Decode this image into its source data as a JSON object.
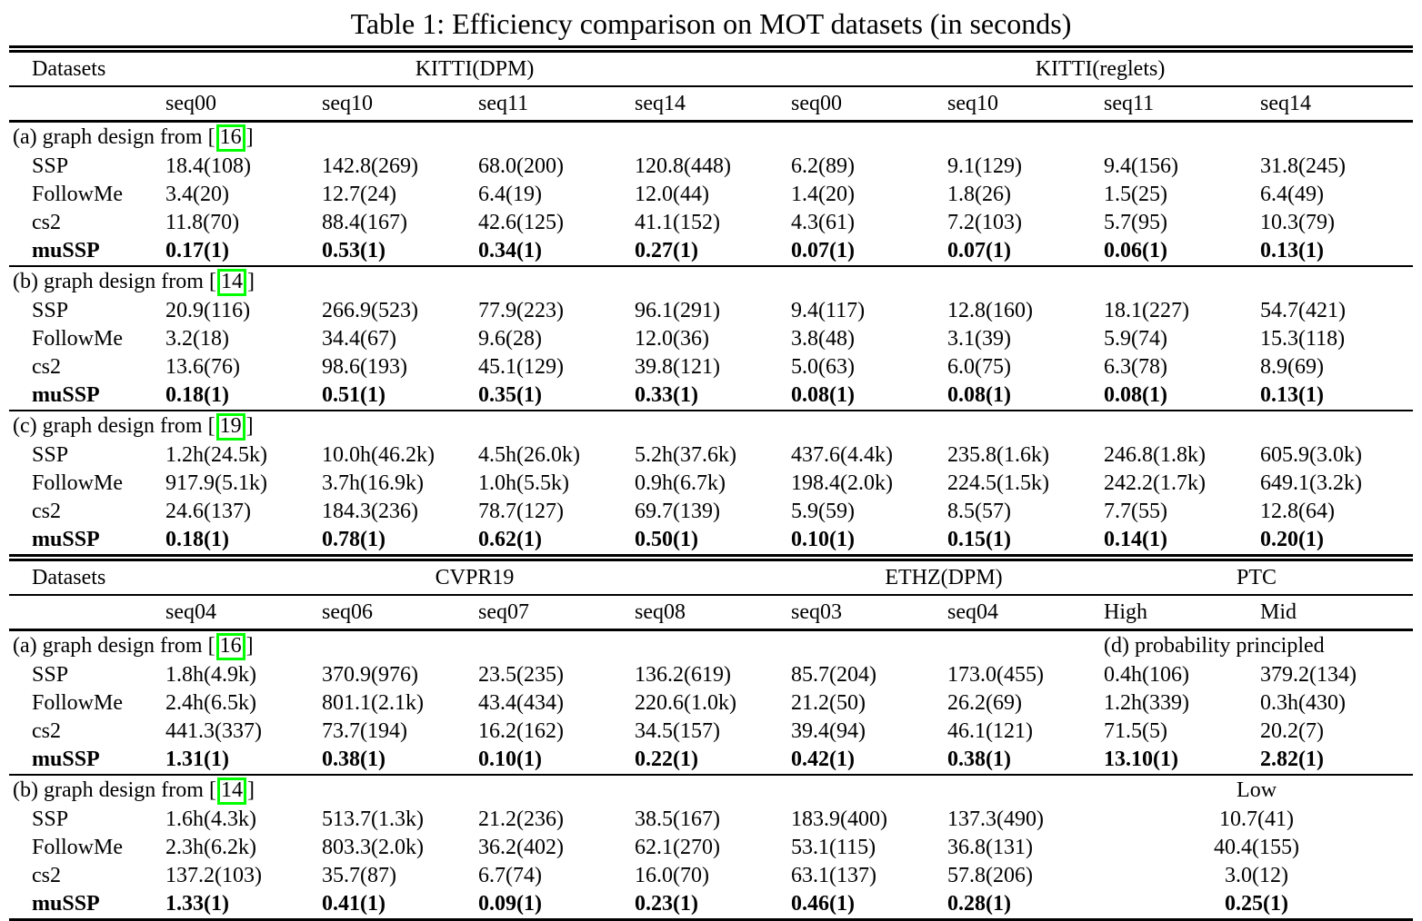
{
  "title": "Table 1: Efficiency comparison on MOT datasets (in seconds)",
  "accent_green": "#00ff00",
  "table1": {
    "datasets_label": "Datasets",
    "groups": [
      {
        "label": "KITTI(DPM)",
        "span": 4
      },
      {
        "label": "KITTI(reglets)",
        "span": 4
      }
    ],
    "seq_headers": [
      "seq00",
      "seq10",
      "seq11",
      "seq14",
      "seq00",
      "seq10",
      "seq11",
      "seq14"
    ],
    "sections": [
      {
        "label_prefix": "(a) graph design from [",
        "cite": "16",
        "label_suffix": "]",
        "rows": [
          {
            "name": "SSP",
            "bold": false,
            "values": [
              "18.4(108)",
              "142.8(269)",
              "68.0(200)",
              "120.8(448)",
              "6.2(89)",
              "9.1(129)",
              "9.4(156)",
              "31.8(245)"
            ]
          },
          {
            "name": "FollowMe",
            "bold": false,
            "values": [
              "3.4(20)",
              "12.7(24)",
              "6.4(19)",
              "12.0(44)",
              "1.4(20)",
              "1.8(26)",
              "1.5(25)",
              "6.4(49)"
            ]
          },
          {
            "name": "cs2",
            "bold": false,
            "values": [
              "11.8(70)",
              "88.4(167)",
              "42.6(125)",
              "41.1(152)",
              "4.3(61)",
              "7.2(103)",
              "5.7(95)",
              "10.3(79)"
            ]
          },
          {
            "name": "muSSP",
            "bold": true,
            "values": [
              "0.17(1)",
              "0.53(1)",
              "0.34(1)",
              "0.27(1)",
              "0.07(1)",
              "0.07(1)",
              "0.06(1)",
              "0.13(1)"
            ]
          }
        ]
      },
      {
        "label_prefix": "(b) graph design from [",
        "cite": "14",
        "label_suffix": "]",
        "rows": [
          {
            "name": "SSP",
            "bold": false,
            "values": [
              "20.9(116)",
              "266.9(523)",
              "77.9(223)",
              "96.1(291)",
              "9.4(117)",
              "12.8(160)",
              "18.1(227)",
              "54.7(421)"
            ]
          },
          {
            "name": "FollowMe",
            "bold": false,
            "values": [
              "3.2(18)",
              "34.4(67)",
              "9.6(28)",
              "12.0(36)",
              "3.8(48)",
              "3.1(39)",
              "5.9(74)",
              "15.3(118)"
            ]
          },
          {
            "name": "cs2",
            "bold": false,
            "values": [
              "13.6(76)",
              "98.6(193)",
              "45.1(129)",
              "39.8(121)",
              "5.0(63)",
              "6.0(75)",
              "6.3(78)",
              "8.9(69)"
            ]
          },
          {
            "name": "muSSP",
            "bold": true,
            "values": [
              "0.18(1)",
              "0.51(1)",
              "0.35(1)",
              "0.33(1)",
              "0.08(1)",
              "0.08(1)",
              "0.08(1)",
              "0.13(1)"
            ]
          }
        ]
      },
      {
        "label_prefix": "(c) graph design from [",
        "cite": "19",
        "label_suffix": "]",
        "rows": [
          {
            "name": "SSP",
            "bold": false,
            "values": [
              "1.2h(24.5k)",
              "10.0h(46.2k)",
              "4.5h(26.0k)",
              "5.2h(37.6k)",
              "437.6(4.4k)",
              "235.8(1.6k)",
              "246.8(1.8k)",
              "605.9(3.0k)"
            ]
          },
          {
            "name": "FollowMe",
            "bold": false,
            "values": [
              "917.9(5.1k)",
              "3.7h(16.9k)",
              "1.0h(5.5k)",
              "0.9h(6.7k)",
              "198.4(2.0k)",
              "224.5(1.5k)",
              "242.2(1.7k)",
              "649.1(3.2k)"
            ]
          },
          {
            "name": "cs2",
            "bold": false,
            "values": [
              "24.6(137)",
              "184.3(236)",
              "78.7(127)",
              "69.7(139)",
              "5.9(59)",
              "8.5(57)",
              "7.7(55)",
              "12.8(64)"
            ]
          },
          {
            "name": "muSSP",
            "bold": true,
            "values": [
              "0.18(1)",
              "0.78(1)",
              "0.62(1)",
              "0.50(1)",
              "0.10(1)",
              "0.15(1)",
              "0.14(1)",
              "0.20(1)"
            ]
          }
        ]
      }
    ]
  },
  "table2": {
    "datasets_label": "Datasets",
    "groups": [
      {
        "label": "CVPR19",
        "span": 4
      },
      {
        "label": "ETHZ(DPM)",
        "span": 2
      },
      {
        "label": "PTC",
        "span": 2
      }
    ],
    "seq_headers": [
      "seq04",
      "seq06",
      "seq07",
      "seq08",
      "seq03",
      "seq04",
      "High",
      "Mid"
    ],
    "sections": [
      {
        "label_prefix": "(a) graph design from [",
        "cite": "16",
        "label_suffix": "]",
        "extra_label": "(d) probability principled",
        "extra_align": "left",
        "rows": [
          {
            "name": "SSP",
            "bold": false,
            "values": [
              "1.8h(4.9k)",
              "370.9(976)",
              "23.5(235)",
              "136.2(619)",
              "85.7(204)",
              "173.0(455)",
              "0.4h(106)",
              "379.2(134)"
            ]
          },
          {
            "name": "FollowMe",
            "bold": false,
            "values": [
              "2.4h(6.5k)",
              "801.1(2.1k)",
              "43.4(434)",
              "220.6(1.0k)",
              "21.2(50)",
              "26.2(69)",
              "1.2h(339)",
              "0.3h(430)"
            ]
          },
          {
            "name": "cs2",
            "bold": false,
            "values": [
              "441.3(337)",
              "73.7(194)",
              "16.2(162)",
              "34.5(157)",
              "39.4(94)",
              "46.1(121)",
              "71.5(5)",
              "20.2(7)"
            ]
          },
          {
            "name": "muSSP",
            "bold": true,
            "values": [
              "1.31(1)",
              "0.38(1)",
              "0.10(1)",
              "0.22(1)",
              "0.42(1)",
              "0.38(1)",
              "13.10(1)",
              "2.82(1)"
            ]
          }
        ]
      },
      {
        "label_prefix": "(b) graph design from [",
        "cite": "14",
        "label_suffix": "]",
        "extra_label": "Low",
        "extra_align": "center",
        "rows": [
          {
            "name": "SSP",
            "bold": false,
            "values": [
              "1.6h(4.3k)",
              "513.7(1.3k)",
              "21.2(236)",
              "38.5(167)",
              "183.9(400)",
              "137.3(490)"
            ],
            "merged_value": "10.7(41)"
          },
          {
            "name": "FollowMe",
            "bold": false,
            "values": [
              "2.3h(6.2k)",
              "803.3(2.0k)",
              "36.2(402)",
              "62.1(270)",
              "53.1(115)",
              "36.8(131)"
            ],
            "merged_value": "40.4(155)"
          },
          {
            "name": "cs2",
            "bold": false,
            "values": [
              "137.2(103)",
              "35.7(87)",
              "6.7(74)",
              "16.0(70)",
              "63.1(137)",
              "57.8(206)"
            ],
            "merged_value": "3.0(12)"
          },
          {
            "name": "muSSP",
            "bold": true,
            "values": [
              "1.33(1)",
              "0.41(1)",
              "0.09(1)",
              "0.23(1)",
              "0.46(1)",
              "0.28(1)"
            ],
            "merged_value": "0.25(1)"
          }
        ]
      }
    ]
  }
}
